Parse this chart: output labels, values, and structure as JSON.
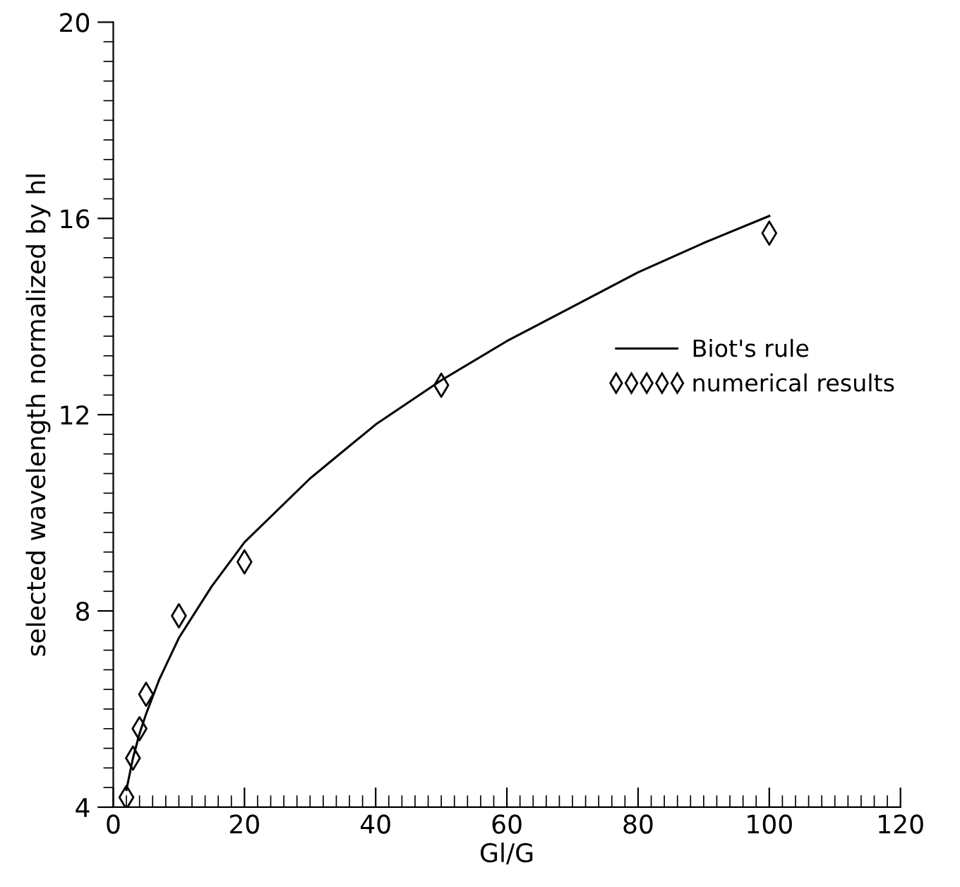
{
  "chart_data": {
    "type": "line",
    "xlabel": "Gl/G",
    "ylabel": "selected wavelength normalized by hl",
    "xlim": [
      0,
      120
    ],
    "xticks": [
      0,
      20,
      40,
      60,
      80,
      100,
      120
    ],
    "ylim": [
      4,
      20
    ],
    "yticks": [
      4,
      8,
      12,
      16,
      20
    ],
    "grid": false,
    "legend": "right",
    "series": [
      {
        "name": "Biot's rule",
        "color": "#000000",
        "marker": "none",
        "line_style": "solid",
        "x": [
          2,
          3,
          4,
          5,
          7,
          10,
          15,
          20,
          30,
          40,
          50,
          60,
          70,
          80,
          90,
          100
        ],
        "values": [
          4.35,
          5.0,
          5.5,
          5.9,
          6.6,
          7.45,
          8.5,
          9.4,
          10.7,
          11.8,
          12.7,
          13.5,
          14.2,
          14.9,
          15.5,
          16.05
        ]
      },
      {
        "name": "numerical results",
        "type": "scatter",
        "color": "#000000",
        "marker": "diamond",
        "x": [
          2,
          3,
          4,
          5,
          10,
          20,
          50,
          100
        ],
        "values": [
          4.2,
          5.0,
          5.6,
          6.3,
          7.9,
          9.0,
          12.6,
          15.7
        ]
      }
    ]
  }
}
